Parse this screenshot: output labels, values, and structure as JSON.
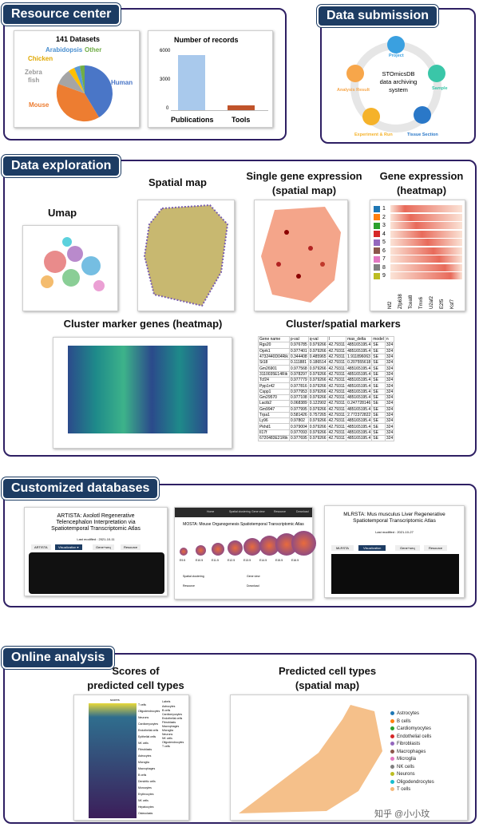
{
  "resource": {
    "title": "Resource center",
    "pie": {
      "title": "141 Datasets",
      "labels": [
        "Human",
        "Mouse",
        "Zebra",
        "fish",
        "Chicken",
        "Arabidopsis",
        "Other"
      ]
    },
    "bars": {
      "title": "Number of records",
      "ticks": [
        "6000",
        "3000",
        "0"
      ],
      "categories": [
        "Publications",
        "Tools"
      ]
    }
  },
  "submission": {
    "title": "Data submission",
    "center": [
      "STOmicsDB",
      "data archiving",
      "system"
    ],
    "nodes": [
      "Project",
      "Sample",
      "Tissue Section",
      "Experiment & Run",
      "Analysis Result"
    ]
  },
  "exploration": {
    "title": "Data exploration",
    "umap": "Umap",
    "spatial": "Spatial map",
    "single": [
      "Single gene expression",
      "(spatial map)"
    ],
    "heat": [
      "Gene expression",
      "(heatmap)"
    ],
    "heat_rows": [
      "1",
      "2",
      "3",
      "4",
      "5",
      "6",
      "7",
      "8",
      "9"
    ],
    "heat_genes": [
      "Nf2",
      "Zfp638",
      "Tceal8",
      "Tmx6",
      "U2af2",
      "E2f5",
      "Ksf7"
    ],
    "cluster": "Cluster marker genes (heatmap)",
    "markers": "Cluster/spatial markers",
    "table_head": [
      "Gene name",
      "p-val",
      "q-val",
      "l",
      "max_delta",
      "model",
      "n"
    ],
    "table_rows": [
      [
        "Rgs20",
        "0.976785",
        "0.979266",
        "42.79311",
        "485165195.4",
        "SE",
        "324"
      ],
      [
        "Oprk1",
        "0.977401",
        "0.979266",
        "42.79311",
        "485165195.4",
        "SE",
        "324"
      ],
      [
        "4732440D04Rik",
        "0.344408",
        "0.485965",
        "42.79311",
        "1.911896063",
        "SE",
        "324"
      ],
      [
        "St18",
        "0.111881",
        "0.186514",
        "42.79311",
        "0.207555618",
        "SE",
        "324"
      ],
      [
        "Gm26901",
        "0.977568",
        "0.979266",
        "42.79311",
        "485165195.4",
        "SE",
        "324"
      ],
      [
        "3110035E14Rik",
        "0.978297",
        "0.979266",
        "42.79311",
        "485165195.4",
        "SE",
        "324"
      ],
      [
        "Tcf24",
        "0.977779",
        "0.979266",
        "42.79311",
        "485165195.4",
        "SE",
        "324"
      ],
      [
        "Ppp1r42",
        "0.977816",
        "0.979266",
        "42.79311",
        "485165195.4",
        "SE",
        "324"
      ],
      [
        "Cspp1",
        "0.977953",
        "0.979266",
        "42.79311",
        "485165195.4",
        "SE",
        "324"
      ],
      [
        "Gm29570",
        "0.977108",
        "0.979266",
        "42.79311",
        "485165195.4",
        "SE",
        "324"
      ],
      [
        "Lactb2",
        "0.068389",
        "0.122902",
        "42.79311",
        "0.247728146",
        "SE",
        "324"
      ],
      [
        "Gm9947",
        "0.977995",
        "0.979266",
        "42.79311",
        "485165195.4",
        "SE",
        "324"
      ],
      [
        "Trpa1",
        "0.581426",
        "0.757265",
        "42.79311",
        "2.772372822",
        "SE",
        "324"
      ],
      [
        "Ly96",
        "0.97802",
        "0.979266",
        "42.79311",
        "485165195.4",
        "SE",
        "324"
      ],
      [
        "Pkhd1",
        "0.979004",
        "0.979266",
        "42.79311",
        "485165195.4",
        "SE",
        "324"
      ],
      [
        "Il17f",
        "0.977093",
        "0.979266",
        "42.79311",
        "485165195.4",
        "SE",
        "324"
      ],
      [
        "6720483E21Rik",
        "0.977695",
        "0.979266",
        "42.79311",
        "485165195.4",
        "SE",
        "324"
      ]
    ]
  },
  "customized": {
    "title": "Customized databases",
    "artista": {
      "title": [
        "ARTISTA: Axolotl Regenerative",
        "Telencephalon Interpretation via",
        "Spatiotemporal Transcriptomic Atlas"
      ],
      "modified": "Last modified : 2021-10-11",
      "tabs": [
        "ARTISTA",
        "Visualization ▾",
        "Gene+seq",
        "Resource"
      ]
    },
    "mosta": {
      "nav": [
        "Home",
        "Spatial clustering",
        "Gene view",
        "Resource",
        "Download"
      ],
      "title": "MOSTA: Mouse Organogenesis Spatiotemporal Transcriptomic Atlas",
      "stages": [
        "E9.5",
        "E10.5",
        "E11.5",
        "E12.5",
        "E13.5",
        "E14.5",
        "E15.5",
        "E16.5"
      ],
      "items": [
        "Spatial clustering",
        "Gene view",
        "Resource",
        "Download"
      ]
    },
    "mlrsta": {
      "title": [
        "MLRSTA: Mus musculus Liver Regenerative",
        "Spatiotemporal Transcriptomic Atlas"
      ],
      "modified": "Last modified : 2021-10-27",
      "tabs": [
        "MLRSTA",
        "Visualization",
        "Gene+seq",
        "Resource"
      ]
    }
  },
  "online": {
    "title": "Online analysis",
    "scores": [
      "Scores of",
      "predicted cell types"
    ],
    "scores_head": "scores",
    "scores_rows": [
      "T cells",
      "Oligodendrocytes",
      "Neurons",
      "Cardiomyocytes",
      "Endothelial cells",
      "Epithelial cells",
      "NK cells",
      "Fibroblasts",
      "Astrocytes",
      "Microglia",
      "Macrophages",
      "B cells",
      "Dendritic cells",
      "Monocytes",
      "Erythrocytes",
      "NK cells",
      "Hepatocytes",
      "Osteoclasts"
    ],
    "scores_legend_title": "Labels",
    "scores_legend": [
      "Astrocytes",
      "B cells",
      "Cardiomyocytes",
      "Endothelial cells",
      "Fibroblasts",
      "Macrophages",
      "Microglia",
      "Neurons",
      "NK cells",
      "Oligodendrocytes",
      "T cells"
    ],
    "predicted": [
      "Predicted cell types",
      "(spatial map)"
    ],
    "legend": [
      "Astrocytes",
      "B cells",
      "Cardiomyocytes",
      "Endothelial cells",
      "Fibroblasts",
      "Macrophages",
      "Microglia",
      "NK cells",
      "Neurons",
      "Oligodendrocytes",
      "T cells"
    ],
    "legend_colors": [
      "#1f77b4",
      "#ff7f0e",
      "#2ca02c",
      "#d62728",
      "#9467bd",
      "#8c564b",
      "#e377c2",
      "#7f7f7f",
      "#bcbd22",
      "#17becf",
      "#f5b97a"
    ],
    "watermark": "知乎 @小小玟"
  }
}
